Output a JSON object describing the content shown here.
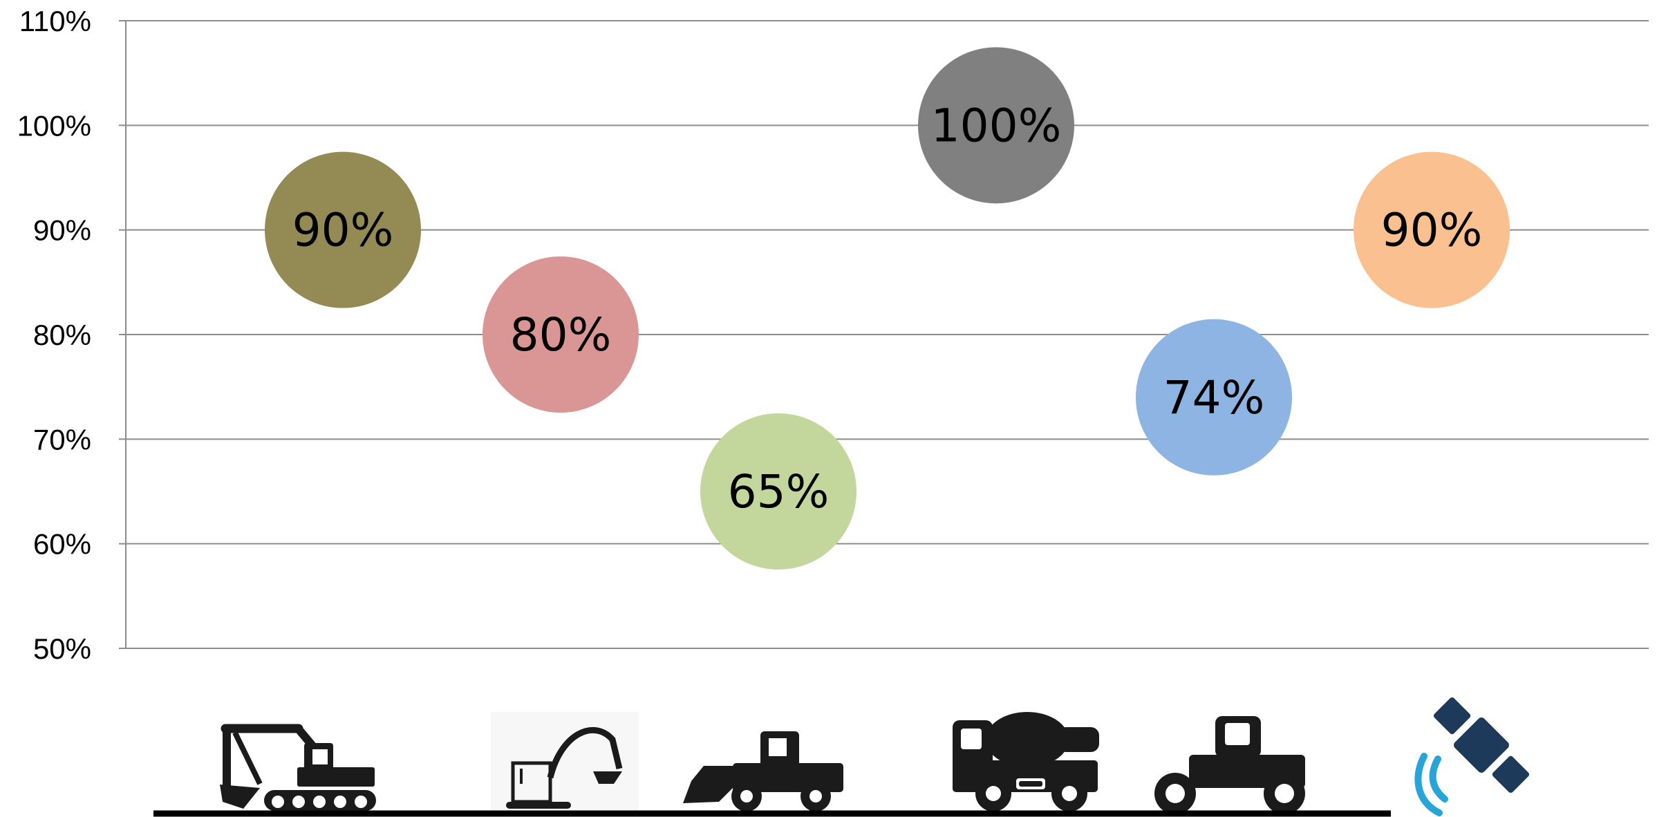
{
  "chart_data": {
    "type": "scatter",
    "title": "",
    "xlabel": "",
    "ylabel": "",
    "ylim": [
      50,
      110
    ],
    "y_ticks": [
      "50%",
      "60%",
      "70%",
      "80%",
      "90%",
      "100%",
      "110%"
    ],
    "y_tick_values": [
      50,
      60,
      70,
      80,
      90,
      100,
      110
    ],
    "grid": true,
    "legend": "none",
    "points": [
      {
        "category": "excavator-icon",
        "value": 90,
        "label": "90%",
        "color": "#948a54"
      },
      {
        "category": "mini-excavator-icon",
        "value": 80,
        "label": "80%",
        "color": "#d99694"
      },
      {
        "category": "wheel-loader-icon",
        "value": 65,
        "label": "65%",
        "color": "#c3d69b"
      },
      {
        "category": "concrete-mixer-icon",
        "value": 100,
        "label": "100%",
        "color": "#808080"
      },
      {
        "category": "road-roller-icon",
        "value": 74,
        "label": "74%",
        "color": "#8eb4e3"
      },
      {
        "category": "satellite-icon",
        "value": 90,
        "label": "90%",
        "color": "#fac090"
      }
    ]
  }
}
